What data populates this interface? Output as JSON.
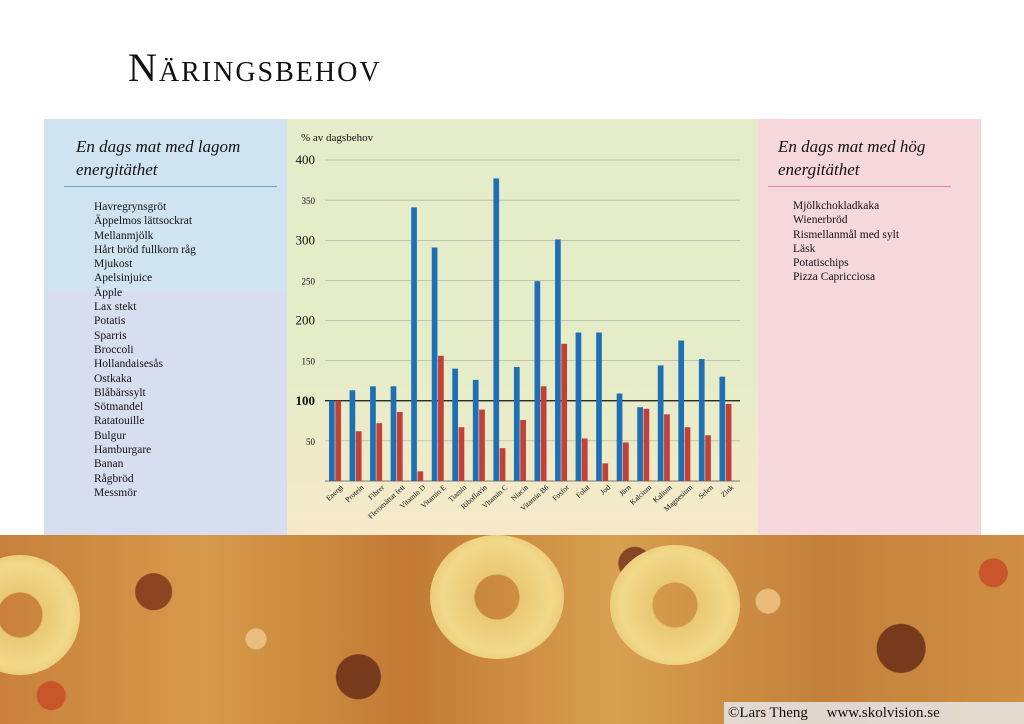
{
  "title": "Näringsbehov",
  "left": {
    "heading": "En dags mat med lagom energitäthet",
    "items": [
      "Havregrynsgröt",
      "Äppelmos lättsockrat",
      "Mellanmjölk",
      "Hårt bröd fullkorn råg",
      "Mjukost",
      "Apelsinjuice",
      "Äpple",
      "Lax stekt",
      "Potatis",
      "Sparris",
      "Broccoli",
      "Hollandaisesås",
      "Ostkaka",
      "Blåbärssylt",
      "Sötmandel",
      "Ratatouille",
      "Bulgur",
      "Hamburgare",
      "Banan",
      "Rågbröd",
      "Messmör"
    ]
  },
  "right": {
    "heading": "En dags mat med hög energitäthet",
    "items": [
      "Mjölkchokladkaka",
      "Wienerbröd",
      "Rismellanmål med sylt",
      "Läsk",
      "Potatischips",
      "Pizza Capricciosa"
    ]
  },
  "chart_data": {
    "type": "bar",
    "ylabel": "% av dagsbehov",
    "ylim": [
      0,
      400
    ],
    "yticks": [
      50,
      100,
      150,
      200,
      250,
      300,
      350,
      400
    ],
    "reference_line": 100,
    "categories": [
      "Energi",
      "Protein",
      "Fibrer",
      "Fleromättat fett",
      "Vitamin D",
      "Vitamin E",
      "Tiamin",
      "Riboflavin",
      "Vitamin C",
      "Niacin",
      "Vitamin B6",
      "Fosfor",
      "Folat",
      "Jod",
      "Järn",
      "Kalcium",
      "Kalium",
      "Magnesium",
      "Selen",
      "Zink"
    ],
    "series": [
      {
        "color": "#1f6fb5",
        "values": [
          100,
          113,
          118,
          118,
          341,
          291,
          140,
          126,
          377,
          142,
          249,
          301,
          185,
          185,
          109,
          92,
          144,
          175,
          152,
          130
        ]
      },
      {
        "color": "#c0403a",
        "values": [
          100,
          62,
          72,
          86,
          12,
          156,
          67,
          89,
          41,
          76,
          118,
          171,
          53,
          22,
          48,
          90,
          83,
          67,
          57,
          96
        ]
      }
    ]
  },
  "credit": {
    "author": "©Lars Theng",
    "site": "www.skolvision.se"
  }
}
